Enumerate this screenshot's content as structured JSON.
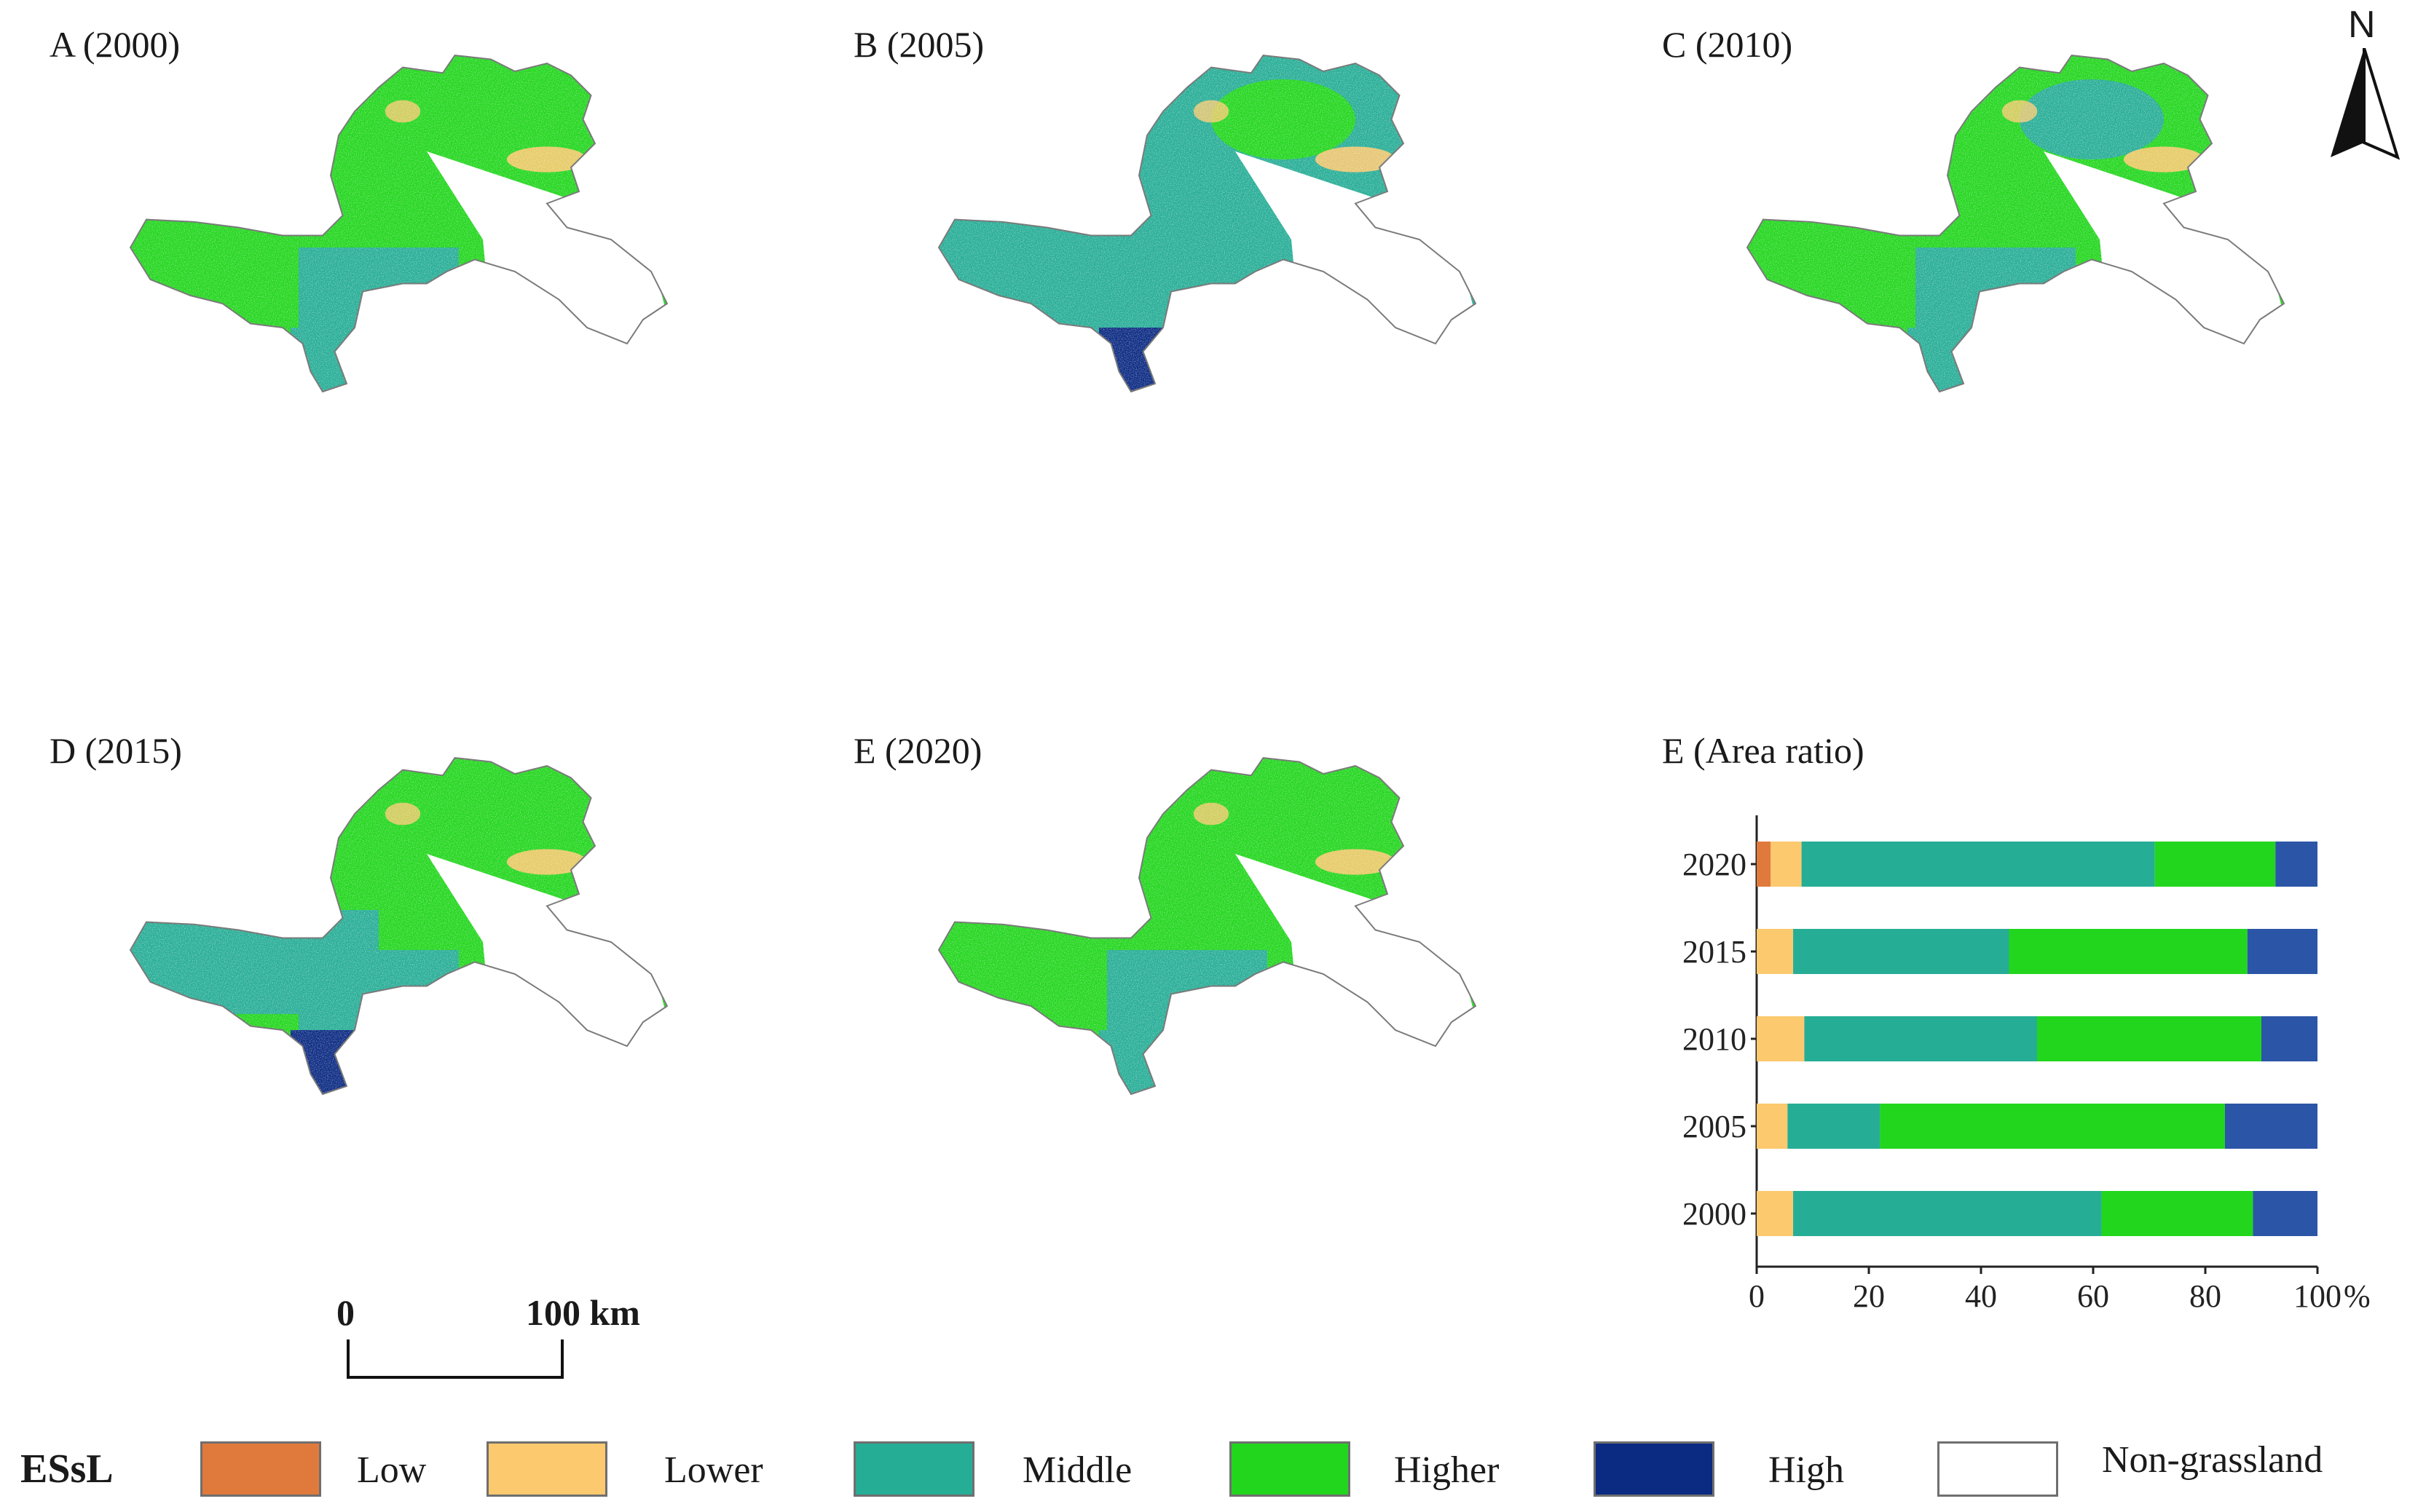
{
  "panels": [
    {
      "id": "A",
      "title": "A (2000)",
      "scheme": "A"
    },
    {
      "id": "B",
      "title": "B (2005)",
      "scheme": "B"
    },
    {
      "id": "C",
      "title": "C (2010)",
      "scheme": "C"
    },
    {
      "id": "D",
      "title": "D (2015)",
      "scheme": "D"
    },
    {
      "id": "E",
      "title": "E (2020)",
      "scheme": "E"
    }
  ],
  "colors": {
    "Low": "#e07a3c",
    "Lower": "#fcc96e",
    "Middle": "#26ad96",
    "Higher": "#22d61d",
    "High": "#0b2a82",
    "Non-grassland": "#ffffff",
    "bar_high": "#2b55a6"
  },
  "north_label": "N",
  "scale_bar": {
    "start_label": "0",
    "end_label": "100 km"
  },
  "legend": {
    "title": "ESsL",
    "items": [
      {
        "label": "Low",
        "color": "#e07a3c"
      },
      {
        "label": "Lower",
        "color": "#fcc96e"
      },
      {
        "label": "Middle",
        "color": "#26ad96"
      },
      {
        "label": "Higher",
        "color": "#22d61d"
      },
      {
        "label": "High",
        "color": "#0b2a82"
      },
      {
        "label": "Non-grassland",
        "color": "#ffffff"
      }
    ]
  },
  "chart_data": {
    "type": "bar",
    "orientation": "horizontal",
    "stacked": true,
    "title": "E (Area ratio)",
    "categories": [
      "2020",
      "2015",
      "2010",
      "2005",
      "2000"
    ],
    "series": [
      {
        "name": "Low",
        "color": "#e07a3c",
        "values": [
          2.5,
          0,
          0,
          0,
          0
        ]
      },
      {
        "name": "Lower",
        "color": "#fcc96e",
        "values": [
          5.5,
          6.5,
          8.5,
          5.5,
          6.5
        ]
      },
      {
        "name": "Middle",
        "color": "#26ad96",
        "values": [
          63,
          38.5,
          41.5,
          16.5,
          55
        ]
      },
      {
        "name": "Higher",
        "color": "#22d61d",
        "values": [
          21.5,
          42.5,
          40,
          61.5,
          27
        ]
      },
      {
        "name": "High",
        "color": "#2b55a6",
        "values": [
          7.5,
          12.5,
          10,
          16.5,
          11.5
        ]
      }
    ],
    "xlim": [
      0,
      100
    ],
    "xticks": [
      0,
      20,
      40,
      60,
      80,
      100
    ],
    "xlabel_unit": "%",
    "grid": false
  }
}
